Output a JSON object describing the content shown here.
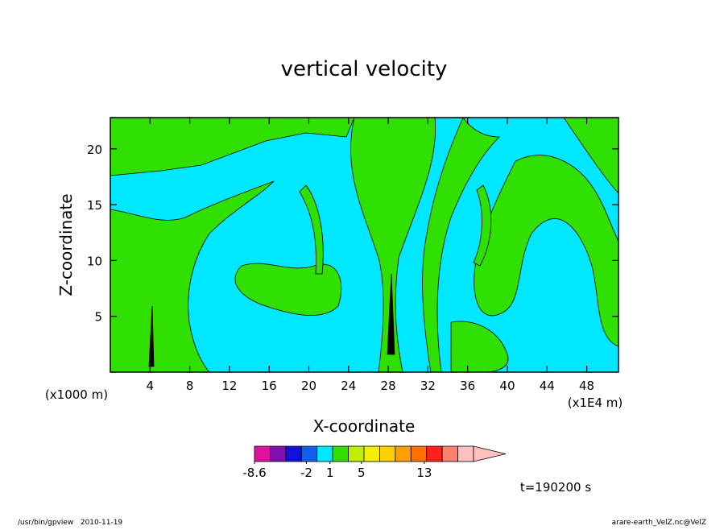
{
  "chart_data": {
    "type": "contour",
    "title": "vertical velocity",
    "xlabel": "X-coordinate",
    "ylabel": "Z-coordinate",
    "xunit": "(x1E4 m)",
    "yunit": "(x1000 m)",
    "xlim": [
      0,
      51.2
    ],
    "ylim": [
      0,
      22.8
    ],
    "xticks": [
      4,
      8,
      12,
      16,
      20,
      24,
      28,
      32,
      36,
      40,
      44,
      48
    ],
    "yticks": [
      5,
      10,
      15,
      20
    ],
    "colorbar": {
      "colors": [
        "#e010a0",
        "#8010b0",
        "#1010e0",
        "#1060f0",
        "#00e8ff",
        "#30e000",
        "#c0f000",
        "#f0f000",
        "#ffd000",
        "#ffa000",
        "#ff7000",
        "#ff2020",
        "#ff8070",
        "#ffc0c0"
      ],
      "ticks": [
        -8.6,
        -2,
        1,
        5,
        13
      ]
    },
    "time_label": "t=190200 s",
    "footer_left": "/usr/bin/gpview   2010-11-19",
    "footer_right": "arare-earth_VelZ.nc@VelZ"
  }
}
